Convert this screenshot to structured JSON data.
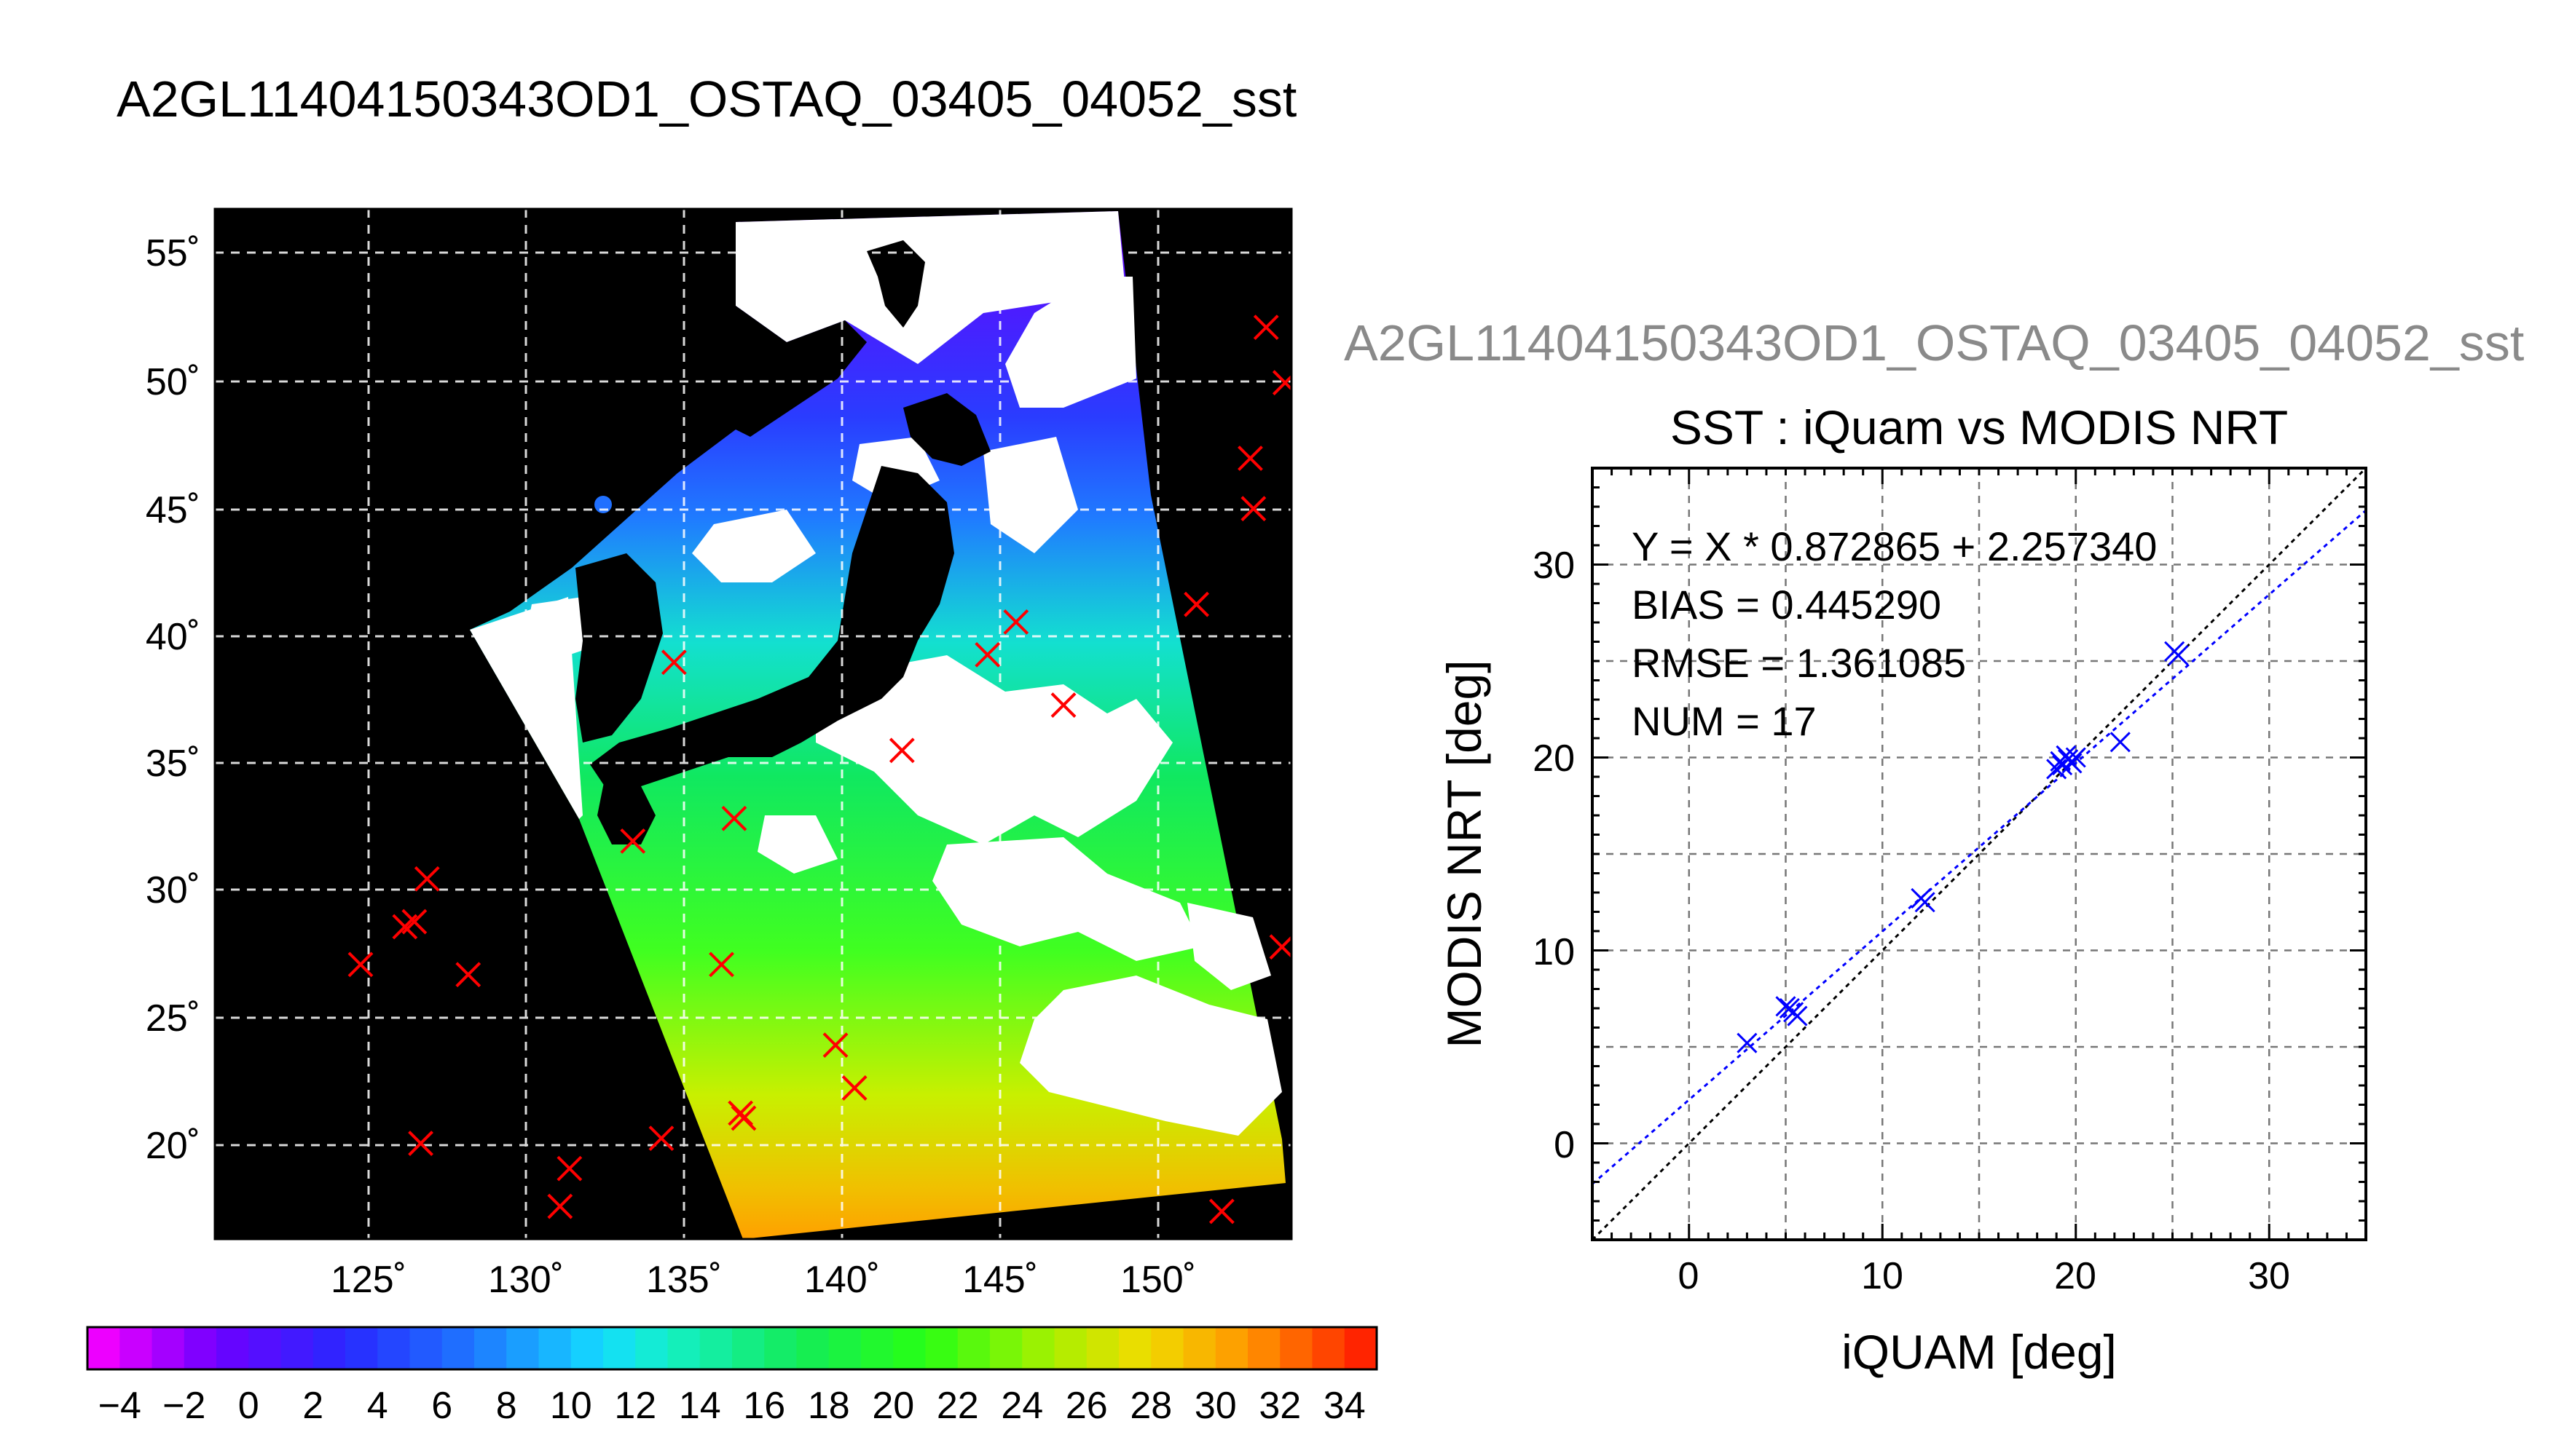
{
  "main_title": "A2GL11404150343OD1_OSTAQ_03405_04052_sst",
  "chart_data": [
    {
      "type": "map",
      "x_ticks": [
        "125˚",
        "130˚",
        "135˚",
        "140˚",
        "145˚",
        "150˚"
      ],
      "y_ticks": [
        "55˚",
        "50˚",
        "45˚",
        "40˚",
        "35˚",
        "30˚",
        "25˚",
        "20˚"
      ],
      "xlim": [
        120.5,
        154.5
      ],
      "ylim": [
        16.0,
        56.9
      ],
      "grid": true,
      "colors": {
        "land": "#000000",
        "cloud": "#ffffff",
        "marker": "#ff0000"
      },
      "colorbar": {
        "vmin": -5,
        "vmax": 35,
        "tick_labels": [
          "−4",
          "−2",
          "0",
          "2",
          "4",
          "6",
          "8",
          "10",
          "12",
          "14",
          "16",
          "18",
          "20",
          "22",
          "24",
          "26",
          "28",
          "30",
          "32",
          "34"
        ]
      },
      "buoy_markers": [
        {
          "lon": 125.1,
          "lat": 26.9
        },
        {
          "lon": 126.5,
          "lat": 28.4
        },
        {
          "lon": 126.8,
          "lat": 28.6
        },
        {
          "lon": 127.2,
          "lat": 30.3
        },
        {
          "lon": 128.5,
          "lat": 26.5
        },
        {
          "lon": 127.0,
          "lat": 19.8
        },
        {
          "lon": 131.4,
          "lat": 17.3
        },
        {
          "lon": 131.7,
          "lat": 18.8
        },
        {
          "lon": 134.6,
          "lat": 20.0
        },
        {
          "lon": 133.7,
          "lat": 31.8
        },
        {
          "lon": 135.0,
          "lat": 38.9
        },
        {
          "lon": 136.5,
          "lat": 26.9
        },
        {
          "lon": 136.9,
          "lat": 32.7
        },
        {
          "lon": 137.1,
          "lat": 21.0
        },
        {
          "lon": 137.2,
          "lat": 20.8
        },
        {
          "lon": 140.1,
          "lat": 23.7
        },
        {
          "lon": 140.7,
          "lat": 22.0
        },
        {
          "lon": 142.2,
          "lat": 35.4
        },
        {
          "lon": 144.9,
          "lat": 39.2
        },
        {
          "lon": 145.8,
          "lat": 40.5
        },
        {
          "lon": 147.3,
          "lat": 37.2
        },
        {
          "lon": 151.5,
          "lat": 41.2
        },
        {
          "lon": 152.3,
          "lat": 17.1
        },
        {
          "lon": 153.2,
          "lat": 47.0
        },
        {
          "lon": 153.3,
          "lat": 45.0
        },
        {
          "lon": 153.7,
          "lat": 52.2
        },
        {
          "lon": 154.3,
          "lat": 50.0
        },
        {
          "lon": 154.2,
          "lat": 27.6
        }
      ]
    },
    {
      "type": "scatter",
      "supertitle": "A2GL11404150343OD1_OSTAQ_03405_04052_sst",
      "title": "SST : iQuam vs MODIS NRT",
      "xlabel": "iQUAM [deg]",
      "ylabel": "MODIS NRT [deg]",
      "xlim": [
        -5,
        35
      ],
      "ylim": [
        -5,
        35
      ],
      "x_ticks": [
        "0",
        "10",
        "20",
        "30"
      ],
      "y_ticks": [
        "0",
        "10",
        "20",
        "30"
      ],
      "grid": true,
      "stats": [
        "Y = X * 0.872865 + 2.257340",
        "BIAS = 0.445290",
        "RMSE = 1.361085",
        "NUM = 17"
      ],
      "fit": {
        "slope": 0.872865,
        "intercept": 2.25734
      },
      "colors": {
        "points": "#0000ff",
        "fit_line": "#0000ff",
        "one_to_one": "#000000"
      },
      "points": [
        {
          "x": 3.0,
          "y": 5.2
        },
        {
          "x": 5.2,
          "y": 7.0
        },
        {
          "x": 5.4,
          "y": 6.8
        },
        {
          "x": 5.6,
          "y": 6.6
        },
        {
          "x": 5.0,
          "y": 7.1
        },
        {
          "x": 12.0,
          "y": 12.7
        },
        {
          "x": 12.2,
          "y": 12.5
        },
        {
          "x": 19.0,
          "y": 19.4
        },
        {
          "x": 19.2,
          "y": 19.8
        },
        {
          "x": 19.5,
          "y": 20.1
        },
        {
          "x": 19.8,
          "y": 19.7
        },
        {
          "x": 20.0,
          "y": 20.0
        },
        {
          "x": 19.3,
          "y": 19.6
        },
        {
          "x": 22.3,
          "y": 20.8
        },
        {
          "x": 25.3,
          "y": 25.3
        },
        {
          "x": 25.1,
          "y": 25.5
        },
        {
          "x": 19.6,
          "y": 19.9
        }
      ]
    }
  ]
}
